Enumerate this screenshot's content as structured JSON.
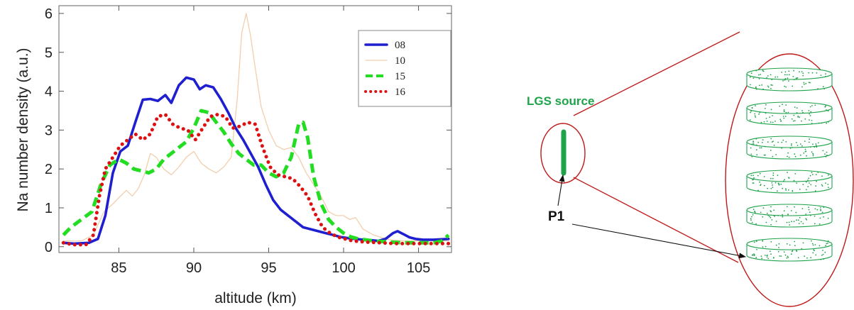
{
  "chart_data": {
    "type": "line",
    "xlabel": "altitude  (km)",
    "ylabel": "Na number density (a.u.)",
    "xlim": [
      81,
      107.2
    ],
    "ylim": [
      -0.15,
      6.2
    ],
    "xticks": [
      85,
      90,
      95,
      100,
      105
    ],
    "yticks": [
      0,
      1,
      2,
      3,
      4,
      5,
      6
    ],
    "grid": false,
    "legend_position": "top-right",
    "series": [
      {
        "name": "08",
        "color": "#1f1fd0",
        "style": "solid",
        "x": [
          81.3,
          82,
          83,
          83.6,
          84.1,
          84.6,
          85.1,
          85.6,
          86.1,
          86.6,
          87.1,
          87.6,
          88.1,
          88.5,
          89,
          89.5,
          90,
          90.4,
          90.8,
          91.3,
          91.8,
          92.3,
          92.8,
          93.3,
          93.8,
          94.3,
          94.8,
          95.3,
          95.8,
          96.3,
          96.8,
          97.3,
          97.8,
          98.3,
          98.8,
          99.3,
          99.8,
          100.3,
          100.8,
          101.3,
          101.8,
          102.3,
          102.8,
          103.3,
          103.6,
          104,
          104.4,
          104.8,
          105.3,
          106,
          107
        ],
        "y": [
          0.1,
          0.08,
          0.1,
          0.2,
          0.8,
          1.9,
          2.45,
          2.6,
          3.2,
          3.78,
          3.8,
          3.75,
          3.9,
          3.7,
          4.15,
          4.35,
          4.3,
          4.05,
          4.15,
          4.1,
          3.8,
          3.45,
          3.05,
          2.75,
          2.4,
          2.05,
          1.6,
          1.2,
          0.95,
          0.8,
          0.65,
          0.5,
          0.45,
          0.4,
          0.35,
          0.3,
          0.25,
          0.22,
          0.2,
          0.18,
          0.17,
          0.15,
          0.2,
          0.35,
          0.4,
          0.32,
          0.24,
          0.2,
          0.18,
          0.18,
          0.2
        ]
      },
      {
        "name": "10",
        "color": "#f1cfae",
        "style": "solid",
        "x": [
          81.3,
          82.5,
          83.3,
          84,
          84.6,
          85.1,
          85.5,
          85.9,
          86.3,
          86.7,
          87.1,
          87.5,
          88,
          88.5,
          89,
          89.5,
          90,
          90.5,
          91,
          91.5,
          92,
          92.5,
          92.9,
          93.2,
          93.5,
          93.8,
          94.1,
          94.5,
          95,
          95.5,
          96,
          96.5,
          97,
          97.5,
          98,
          98.5,
          99,
          99.5,
          100,
          100.4,
          100.8,
          101.3,
          102,
          103,
          104,
          105,
          106,
          107
        ],
        "y": [
          0.15,
          0.15,
          0.3,
          0.9,
          1.1,
          1.3,
          1.45,
          1.3,
          1.5,
          1.85,
          2.4,
          2.3,
          2.0,
          1.85,
          2.05,
          2.3,
          2.45,
          2.15,
          2.0,
          1.9,
          2.05,
          2.3,
          3.8,
          5.5,
          6.0,
          5.4,
          4.6,
          3.6,
          3.0,
          2.6,
          2.5,
          2.55,
          2.3,
          1.9,
          1.6,
          1.3,
          0.9,
          0.8,
          0.8,
          0.7,
          0.75,
          0.45,
          0.3,
          0.18,
          0.15,
          0.15,
          0.15,
          0.15
        ]
      },
      {
        "name": "15",
        "color": "#22dd22",
        "style": "dashed",
        "x": [
          81.3,
          81.8,
          82.5,
          83.2,
          83.8,
          84.4,
          85,
          85.5,
          86,
          86.5,
          87,
          87.5,
          88,
          88.5,
          89,
          89.5,
          90,
          90.5,
          91,
          91.5,
          92,
          92.5,
          93,
          93.5,
          94,
          94.5,
          95,
          95.5,
          96,
          96.5,
          97,
          97.3,
          97.6,
          98,
          98.5,
          99,
          99.5,
          100,
          100.5,
          101,
          102,
          103,
          104,
          105,
          106,
          106.6,
          107
        ],
        "y": [
          0.3,
          0.5,
          0.7,
          0.9,
          1.6,
          2.1,
          2.25,
          2.15,
          2.0,
          1.95,
          1.9,
          2.0,
          2.25,
          2.4,
          2.55,
          2.7,
          3.05,
          3.5,
          3.45,
          3.2,
          2.95,
          2.65,
          2.4,
          2.25,
          2.1,
          2.1,
          1.9,
          1.8,
          1.9,
          2.3,
          3.15,
          3.2,
          2.8,
          1.8,
          1.1,
          0.7,
          0.5,
          0.35,
          0.25,
          0.2,
          0.15,
          0.12,
          0.1,
          0.1,
          0.1,
          0.15,
          0.3
        ]
      },
      {
        "name": "16",
        "color": "#dd1111",
        "style": "dotted",
        "x": [
          81.3,
          82,
          82.8,
          83.3,
          83.7,
          84.1,
          84.6,
          85.1,
          85.6,
          86.1,
          86.6,
          87.1,
          87.6,
          88.1,
          88.6,
          89.1,
          89.6,
          90.1,
          90.6,
          91.1,
          91.6,
          92.1,
          92.6,
          93.1,
          93.6,
          94.1,
          94.6,
          95.1,
          95.6,
          96.1,
          96.6,
          97.1,
          97.6,
          98.1,
          98.6,
          99.1,
          99.6,
          100.1,
          100.6,
          101.5,
          102.5,
          103.5,
          104.5,
          105.5,
          106.5,
          107
        ],
        "y": [
          0.1,
          0.05,
          0.05,
          0.3,
          1.3,
          2.0,
          2.3,
          2.6,
          2.75,
          2.9,
          2.75,
          2.9,
          3.35,
          3.4,
          3.15,
          3.05,
          3.0,
          2.75,
          3.05,
          3.35,
          3.4,
          3.35,
          3.05,
          3.1,
          3.2,
          3.15,
          2.55,
          2.05,
          1.85,
          1.8,
          1.75,
          1.55,
          1.3,
          0.85,
          0.5,
          0.35,
          0.25,
          0.2,
          0.15,
          0.12,
          0.1,
          0.08,
          0.08,
          0.08,
          0.08,
          0.08
        ]
      }
    ]
  },
  "diagram": {
    "source_label": "LGS source",
    "point_label": "P1",
    "slab_count": 6,
    "colors": {
      "line": "#c01818",
      "accent": "#1fa34a",
      "pointer": "#111111"
    }
  }
}
